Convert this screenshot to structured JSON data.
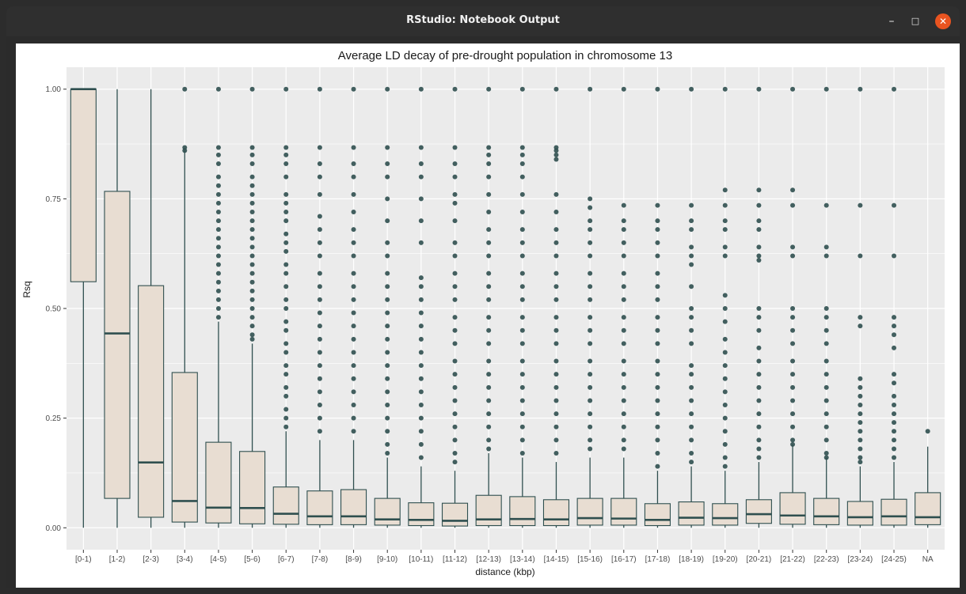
{
  "window": {
    "title": "RStudio: Notebook Output",
    "controls": {
      "minimize": "–",
      "maximize": "□",
      "close": "✕"
    }
  },
  "colors": {
    "panel_bg": "#ebebeb",
    "box_fill": "#e8ddd2",
    "box_stroke": "#2f4f4f",
    "outlier": "#2f4f4f",
    "gridline": "#ffffff"
  },
  "chart_data": {
    "type": "boxplot",
    "title": "Average LD decay of pre-drought population in chromosome 13",
    "xlabel": "distance (kbp)",
    "ylabel": "Rsq",
    "ylim": [
      0,
      1
    ],
    "yticks": [
      0.0,
      0.25,
      0.5,
      0.75,
      1.0
    ],
    "ytick_labels": [
      "0.00",
      "0.25",
      "0.50",
      "0.75",
      "1.00"
    ],
    "grid": true,
    "categories": [
      "[0-1)",
      "[1-2)",
      "[2-3)",
      "[3-4)",
      "[4-5)",
      "[5-6)",
      "[6-7)",
      "[7-8)",
      "[8-9)",
      "[9-10)",
      "[10-11)",
      "[11-12)",
      "[12-13)",
      "[13-14)",
      "[14-15)",
      "[15-16)",
      "[16-17)",
      "[17-18)",
      "[18-19)",
      "[19-20)",
      "[20-21)",
      "[21-22)",
      "[22-23)",
      "[23-24)",
      "[24-25)",
      "NA"
    ],
    "boxes": [
      {
        "min": 0.0,
        "q1": 0.561,
        "median": 1.0,
        "q3": 1.0,
        "max": 1.0
      },
      {
        "min": 0.0,
        "q1": 0.067,
        "median": 0.443,
        "q3": 0.767,
        "max": 1.0
      },
      {
        "min": 0.0,
        "q1": 0.024,
        "median": 0.149,
        "q3": 0.552,
        "max": 1.0
      },
      {
        "min": 0.0,
        "q1": 0.013,
        "median": 0.061,
        "q3": 0.354,
        "max": 0.86
      },
      {
        "min": 0.0,
        "q1": 0.011,
        "median": 0.046,
        "q3": 0.195,
        "max": 0.47
      },
      {
        "min": 0.0,
        "q1": 0.009,
        "median": 0.045,
        "q3": 0.174,
        "max": 0.42
      },
      {
        "min": 0.0,
        "q1": 0.008,
        "median": 0.032,
        "q3": 0.093,
        "max": 0.22
      },
      {
        "min": 0.0,
        "q1": 0.007,
        "median": 0.026,
        "q3": 0.084,
        "max": 0.2
      },
      {
        "min": 0.0,
        "q1": 0.007,
        "median": 0.026,
        "q3": 0.087,
        "max": 0.2
      },
      {
        "min": 0.0,
        "q1": 0.006,
        "median": 0.019,
        "q3": 0.067,
        "max": 0.16
      },
      {
        "min": 0.0,
        "q1": 0.005,
        "median": 0.018,
        "q3": 0.057,
        "max": 0.14
      },
      {
        "min": 0.0,
        "q1": 0.004,
        "median": 0.016,
        "q3": 0.056,
        "max": 0.13
      },
      {
        "min": 0.0,
        "q1": 0.005,
        "median": 0.019,
        "q3": 0.074,
        "max": 0.17
      },
      {
        "min": 0.0,
        "q1": 0.005,
        "median": 0.02,
        "q3": 0.071,
        "max": 0.16
      },
      {
        "min": 0.0,
        "q1": 0.005,
        "median": 0.019,
        "q3": 0.064,
        "max": 0.15
      },
      {
        "min": 0.0,
        "q1": 0.006,
        "median": 0.022,
        "q3": 0.067,
        "max": 0.16
      },
      {
        "min": 0.0,
        "q1": 0.006,
        "median": 0.021,
        "q3": 0.067,
        "max": 0.16
      },
      {
        "min": 0.0,
        "q1": 0.005,
        "median": 0.018,
        "q3": 0.055,
        "max": 0.13
      },
      {
        "min": 0.0,
        "q1": 0.006,
        "median": 0.023,
        "q3": 0.059,
        "max": 0.14
      },
      {
        "min": 0.0,
        "q1": 0.006,
        "median": 0.022,
        "q3": 0.055,
        "max": 0.13
      },
      {
        "min": 0.0,
        "q1": 0.01,
        "median": 0.031,
        "q3": 0.064,
        "max": 0.15
      },
      {
        "min": 0.0,
        "q1": 0.008,
        "median": 0.028,
        "q3": 0.08,
        "max": 0.19
      },
      {
        "min": 0.0,
        "q1": 0.007,
        "median": 0.026,
        "q3": 0.067,
        "max": 0.16
      },
      {
        "min": 0.0,
        "q1": 0.006,
        "median": 0.024,
        "q3": 0.06,
        "max": 0.14
      },
      {
        "min": 0.0,
        "q1": 0.006,
        "median": 0.026,
        "q3": 0.065,
        "max": 0.15
      },
      {
        "min": 0.0,
        "q1": 0.007,
        "median": 0.024,
        "q3": 0.08,
        "max": 0.185
      }
    ],
    "outliers": [
      [],
      [],
      [],
      [
        1.0,
        0.867,
        0.86
      ],
      [
        1.0,
        0.867,
        0.85,
        0.83,
        0.8,
        0.78,
        0.76,
        0.74,
        0.72,
        0.7,
        0.68,
        0.66,
        0.64,
        0.62,
        0.6,
        0.58,
        0.56,
        0.54,
        0.52,
        0.5,
        0.48
      ],
      [
        1.0,
        0.867,
        0.85,
        0.83,
        0.8,
        0.78,
        0.76,
        0.74,
        0.72,
        0.7,
        0.68,
        0.66,
        0.64,
        0.62,
        0.6,
        0.58,
        0.56,
        0.54,
        0.52,
        0.5,
        0.48,
        0.46,
        0.44,
        0.43
      ],
      [
        1.0,
        0.867,
        0.85,
        0.83,
        0.8,
        0.76,
        0.74,
        0.72,
        0.7,
        0.67,
        0.65,
        0.63,
        0.6,
        0.58,
        0.55,
        0.52,
        0.5,
        0.47,
        0.45,
        0.42,
        0.4,
        0.37,
        0.35,
        0.32,
        0.3,
        0.27,
        0.25,
        0.23
      ],
      [
        1.0,
        0.867,
        0.83,
        0.8,
        0.76,
        0.71,
        0.68,
        0.65,
        0.62,
        0.58,
        0.55,
        0.52,
        0.49,
        0.46,
        0.43,
        0.4,
        0.37,
        0.34,
        0.31,
        0.28,
        0.25,
        0.22
      ],
      [
        1.0,
        0.867,
        0.83,
        0.8,
        0.76,
        0.72,
        0.68,
        0.65,
        0.62,
        0.58,
        0.55,
        0.52,
        0.49,
        0.46,
        0.43,
        0.4,
        0.37,
        0.34,
        0.31,
        0.28,
        0.25,
        0.22
      ],
      [
        1.0,
        0.867,
        0.83,
        0.8,
        0.75,
        0.7,
        0.65,
        0.62,
        0.58,
        0.55,
        0.52,
        0.49,
        0.46,
        0.43,
        0.4,
        0.37,
        0.34,
        0.31,
        0.28,
        0.25,
        0.22,
        0.19,
        0.17
      ],
      [
        1.0,
        0.867,
        0.83,
        0.8,
        0.75,
        0.7,
        0.65,
        0.57,
        0.55,
        0.52,
        0.49,
        0.46,
        0.43,
        0.4,
        0.37,
        0.34,
        0.31,
        0.28,
        0.25,
        0.22,
        0.19,
        0.16
      ],
      [
        1.0,
        0.867,
        0.83,
        0.8,
        0.76,
        0.74,
        0.7,
        0.65,
        0.62,
        0.58,
        0.55,
        0.52,
        0.48,
        0.45,
        0.42,
        0.38,
        0.35,
        0.32,
        0.29,
        0.26,
        0.23,
        0.2,
        0.17,
        0.15
      ],
      [
        1.0,
        0.867,
        0.85,
        0.83,
        0.8,
        0.76,
        0.72,
        0.68,
        0.65,
        0.62,
        0.58,
        0.55,
        0.52,
        0.48,
        0.45,
        0.42,
        0.38,
        0.35,
        0.32,
        0.29,
        0.26,
        0.23,
        0.2,
        0.18
      ],
      [
        1.0,
        0.867,
        0.85,
        0.83,
        0.8,
        0.76,
        0.72,
        0.68,
        0.65,
        0.62,
        0.58,
        0.55,
        0.52,
        0.48,
        0.45,
        0.42,
        0.38,
        0.35,
        0.32,
        0.29,
        0.26,
        0.23,
        0.2,
        0.17
      ],
      [
        1.0,
        0.867,
        0.86,
        0.85,
        0.84,
        0.76,
        0.72,
        0.68,
        0.65,
        0.62,
        0.58,
        0.55,
        0.52,
        0.48,
        0.45,
        0.42,
        0.38,
        0.35,
        0.32,
        0.29,
        0.26,
        0.23,
        0.2,
        0.17
      ],
      [
        1.0,
        0.75,
        0.73,
        0.7,
        0.68,
        0.65,
        0.62,
        0.58,
        0.55,
        0.52,
        0.48,
        0.45,
        0.42,
        0.38,
        0.35,
        0.32,
        0.29,
        0.26,
        0.23,
        0.2,
        0.18
      ],
      [
        1.0,
        0.735,
        0.7,
        0.68,
        0.65,
        0.62,
        0.58,
        0.55,
        0.52,
        0.48,
        0.45,
        0.42,
        0.38,
        0.35,
        0.32,
        0.29,
        0.26,
        0.23,
        0.2,
        0.18
      ],
      [
        1.0,
        0.735,
        0.7,
        0.68,
        0.65,
        0.62,
        0.58,
        0.55,
        0.52,
        0.48,
        0.45,
        0.42,
        0.38,
        0.35,
        0.32,
        0.29,
        0.26,
        0.23,
        0.2,
        0.17,
        0.14
      ],
      [
        1.0,
        0.735,
        0.7,
        0.68,
        0.64,
        0.62,
        0.6,
        0.55,
        0.5,
        0.48,
        0.45,
        0.42,
        0.37,
        0.35,
        0.32,
        0.29,
        0.26,
        0.23,
        0.2,
        0.17,
        0.15
      ],
      [
        1.0,
        0.77,
        0.735,
        0.7,
        0.68,
        0.64,
        0.62,
        0.53,
        0.5,
        0.47,
        0.43,
        0.4,
        0.37,
        0.34,
        0.31,
        0.28,
        0.25,
        0.22,
        0.19,
        0.16,
        0.14
      ],
      [
        1.0,
        0.77,
        0.735,
        0.7,
        0.68,
        0.64,
        0.62,
        0.61,
        0.5,
        0.48,
        0.45,
        0.41,
        0.38,
        0.35,
        0.32,
        0.29,
        0.26,
        0.23,
        0.2,
        0.18,
        0.16
      ],
      [
        1.0,
        0.77,
        0.735,
        0.64,
        0.62,
        0.5,
        0.48,
        0.45,
        0.42,
        0.38,
        0.35,
        0.32,
        0.29,
        0.26,
        0.23,
        0.2,
        0.19
      ],
      [
        1.0,
        0.735,
        0.64,
        0.62,
        0.5,
        0.48,
        0.45,
        0.42,
        0.38,
        0.35,
        0.32,
        0.29,
        0.26,
        0.23,
        0.2,
        0.17,
        0.16
      ],
      [
        1.0,
        0.735,
        0.62,
        0.48,
        0.46,
        0.34,
        0.32,
        0.3,
        0.28,
        0.26,
        0.24,
        0.22,
        0.2,
        0.18,
        0.16,
        0.15
      ],
      [
        1.0,
        0.735,
        0.62,
        0.48,
        0.46,
        0.44,
        0.41,
        0.35,
        0.33,
        0.3,
        0.28,
        0.26,
        0.24,
        0.22,
        0.2,
        0.18,
        0.16
      ],
      [
        0.22
      ]
    ]
  }
}
